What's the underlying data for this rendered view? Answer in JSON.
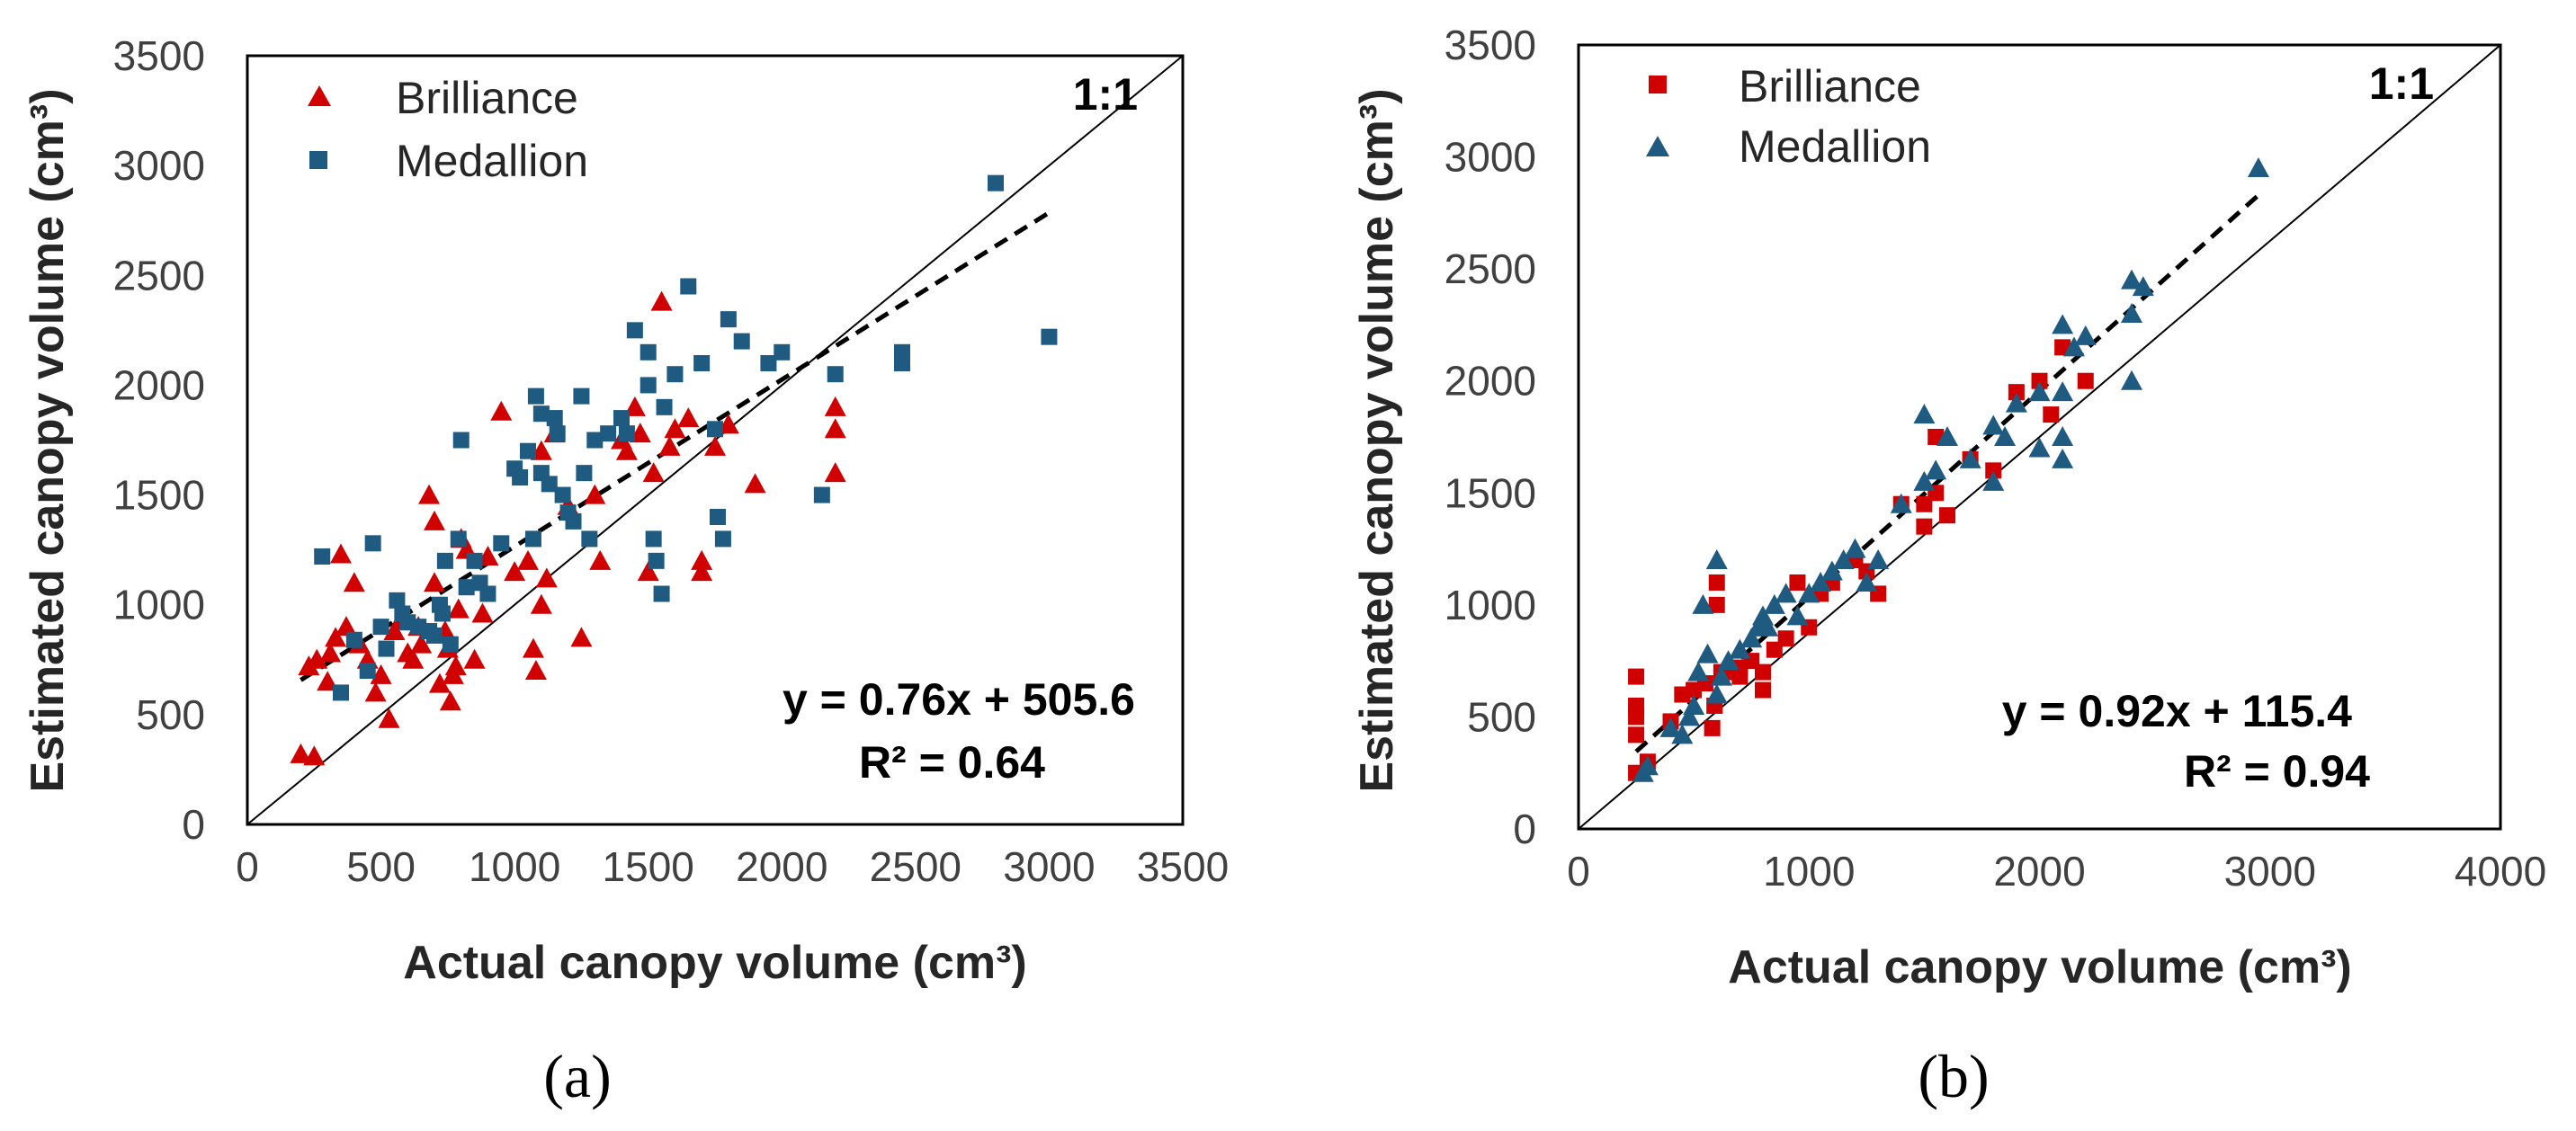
{
  "colors": {
    "brilliance": "#d00000",
    "medallion": "#1f5a80",
    "axis": "#000000"
  },
  "chart_data": [
    {
      "id": "a",
      "type": "scatter",
      "panel_label": "(a)",
      "xlabel": "Actual canopy volume (cm³)",
      "ylabel": "Estimated canopy volume (cm³)",
      "xlim": [
        0,
        3500
      ],
      "ylim": [
        0,
        3500
      ],
      "xticks": [
        0,
        500,
        1000,
        1500,
        2000,
        2500,
        3000,
        3500
      ],
      "yticks": [
        0,
        500,
        1000,
        1500,
        2000,
        2500,
        3000,
        3500
      ],
      "xticklabels": [
        "0",
        "500",
        "1000",
        "1500",
        "2000",
        "2500",
        "3000",
        "3500"
      ],
      "yticklabels": [
        "0",
        "500",
        "1000",
        "1500",
        "2000",
        "2500",
        "3000",
        "3500"
      ],
      "legend_position": "top-left",
      "one_to_one_label": "1:1",
      "equation": "y = 0.76x + 505.6",
      "r2": "R² = 0.64",
      "trendline": {
        "slope": 0.76,
        "intercept": 505.6,
        "x_range": [
          200,
          3000
        ]
      },
      "series": [
        {
          "name": "Brilliance",
          "marker": "triangle",
          "color": "#d00000",
          "points": [
            [
              200,
              320
            ],
            [
              250,
              310
            ],
            [
              230,
              720
            ],
            [
              260,
              750
            ],
            [
              300,
              650
            ],
            [
              310,
              780
            ],
            [
              330,
              850
            ],
            [
              350,
              1230
            ],
            [
              370,
              900
            ],
            [
              400,
              1100
            ],
            [
              420,
              820
            ],
            [
              450,
              750
            ],
            [
              480,
              600
            ],
            [
              500,
              680
            ],
            [
              530,
              480
            ],
            [
              550,
              880
            ],
            [
              580,
              930
            ],
            [
              600,
              780
            ],
            [
              620,
              750
            ],
            [
              640,
              900
            ],
            [
              650,
              820
            ],
            [
              680,
              1500
            ],
            [
              700,
              1380
            ],
            [
              700,
              1100
            ],
            [
              720,
              640
            ],
            [
              740,
              880
            ],
            [
              750,
              800
            ],
            [
              760,
              560
            ],
            [
              770,
              680
            ],
            [
              780,
              720
            ],
            [
              790,
              980
            ],
            [
              800,
              1300
            ],
            [
              820,
              1250
            ],
            [
              850,
              750
            ],
            [
              880,
              960
            ],
            [
              900,
              1220
            ],
            [
              950,
              1880
            ],
            [
              1000,
              1150
            ],
            [
              1050,
              1200
            ],
            [
              1070,
              800
            ],
            [
              1080,
              700
            ],
            [
              1100,
              1000
            ],
            [
              1100,
              1700
            ],
            [
              1120,
              1120
            ],
            [
              1150,
              1780
            ],
            [
              1200,
              1450
            ],
            [
              1250,
              850
            ],
            [
              1300,
              1500
            ],
            [
              1320,
              1200
            ],
            [
              1400,
              1750
            ],
            [
              1420,
              1700
            ],
            [
              1450,
              1900
            ],
            [
              1470,
              1780
            ],
            [
              1500,
              1150
            ],
            [
              1520,
              1600
            ],
            [
              1550,
              2380
            ],
            [
              1580,
              1720
            ],
            [
              1600,
              1800
            ],
            [
              1650,
              1850
            ],
            [
              1700,
              1200
            ],
            [
              1700,
              1150
            ],
            [
              1750,
              1720
            ],
            [
              1800,
              1820
            ],
            [
              1900,
              1550
            ],
            [
              2200,
              1900
            ],
            [
              2200,
              1800
            ],
            [
              2200,
              1600
            ]
          ]
        },
        {
          "name": "Medallion",
          "marker": "square",
          "color": "#1f5a80",
          "points": [
            [
              280,
              1220
            ],
            [
              350,
              600
            ],
            [
              400,
              840
            ],
            [
              450,
              700
            ],
            [
              470,
              1280
            ],
            [
              500,
              900
            ],
            [
              520,
              800
            ],
            [
              560,
              1020
            ],
            [
              580,
              960
            ],
            [
              600,
              920
            ],
            [
              640,
              900
            ],
            [
              680,
              880
            ],
            [
              700,
              860
            ],
            [
              720,
              1000
            ],
            [
              730,
              960
            ],
            [
              740,
              1200
            ],
            [
              760,
              820
            ],
            [
              790,
              1300
            ],
            [
              800,
              1750
            ],
            [
              820,
              1080
            ],
            [
              850,
              1200
            ],
            [
              870,
              1100
            ],
            [
              900,
              1050
            ],
            [
              950,
              1280
            ],
            [
              1000,
              1620
            ],
            [
              1020,
              1580
            ],
            [
              1050,
              1700
            ],
            [
              1070,
              1300
            ],
            [
              1080,
              1950
            ],
            [
              1100,
              1870
            ],
            [
              1100,
              1600
            ],
            [
              1130,
              1550
            ],
            [
              1150,
              1850
            ],
            [
              1160,
              1780
            ],
            [
              1180,
              1500
            ],
            [
              1200,
              1420
            ],
            [
              1220,
              1380
            ],
            [
              1250,
              1950
            ],
            [
              1260,
              1600
            ],
            [
              1280,
              1300
            ],
            [
              1300,
              1750
            ],
            [
              1350,
              1780
            ],
            [
              1400,
              1850
            ],
            [
              1420,
              1780
            ],
            [
              1450,
              2250
            ],
            [
              1500,
              2150
            ],
            [
              1500,
              2000
            ],
            [
              1520,
              1300
            ],
            [
              1530,
              1200
            ],
            [
              1550,
              1050
            ],
            [
              1560,
              1900
            ],
            [
              1600,
              2050
            ],
            [
              1650,
              2450
            ],
            [
              1700,
              2100
            ],
            [
              1750,
              1800
            ],
            [
              1760,
              1400
            ],
            [
              1780,
              1300
            ],
            [
              1800,
              2300
            ],
            [
              1850,
              2200
            ],
            [
              1950,
              2100
            ],
            [
              2000,
              2150
            ],
            [
              2150,
              1500
            ],
            [
              2200,
              2050
            ],
            [
              2450,
              2100
            ],
            [
              2450,
              2150
            ],
            [
              2800,
              2920
            ],
            [
              3000,
              2220
            ]
          ]
        }
      ]
    },
    {
      "id": "b",
      "type": "scatter",
      "panel_label": "(b)",
      "xlabel": "Actual canopy volume (cm³)",
      "ylabel": "Estimated canopy volume (cm³)",
      "xlim": [
        0,
        4000
      ],
      "ylim": [
        0,
        3500
      ],
      "xticks": [
        0,
        1000,
        2000,
        3000,
        4000
      ],
      "yticks": [
        0,
        500,
        1000,
        1500,
        2000,
        2500,
        3000,
        3500
      ],
      "xticklabels": [
        "0",
        "1000",
        "2000",
        "3000",
        "4000"
      ],
      "yticklabels": [
        "0",
        "500",
        "1000",
        "1500",
        "2000",
        "2500",
        "3000",
        "3500"
      ],
      "legend_position": "top-left",
      "one_to_one_label": "1:1",
      "equation": "y = 0.92x + 115.4",
      "r2": "R² = 0.94",
      "trendline": {
        "slope": 0.92,
        "intercept": 115.4,
        "x_range": [
          250,
          2950
        ]
      },
      "series": [
        {
          "name": "Brilliance",
          "marker": "square",
          "color": "#d00000",
          "points": [
            [
              250,
              250
            ],
            [
              250,
              420
            ],
            [
              250,
              500
            ],
            [
              250,
              550
            ],
            [
              250,
              680
            ],
            [
              300,
              300
            ],
            [
              400,
              480
            ],
            [
              450,
              600
            ],
            [
              500,
              620
            ],
            [
              550,
              650
            ],
            [
              580,
              450
            ],
            [
              590,
              550
            ],
            [
              600,
              1000
            ],
            [
              600,
              1100
            ],
            [
              620,
              700
            ],
            [
              650,
              700
            ],
            [
              700,
              680
            ],
            [
              700,
              720
            ],
            [
              750,
              750
            ],
            [
              800,
              620
            ],
            [
              800,
              700
            ],
            [
              850,
              800
            ],
            [
              900,
              850
            ],
            [
              950,
              1100
            ],
            [
              1000,
              900
            ],
            [
              1050,
              1050
            ],
            [
              1100,
              1100
            ],
            [
              1200,
              1200
            ],
            [
              1250,
              1150
            ],
            [
              1300,
              1050
            ],
            [
              1400,
              1450
            ],
            [
              1500,
              1350
            ],
            [
              1500,
              1450
            ],
            [
              1550,
              1500
            ],
            [
              1600,
              1400
            ],
            [
              1550,
              1750
            ],
            [
              1700,
              1650
            ],
            [
              1800,
              1600
            ],
            [
              1900,
              1950
            ],
            [
              2000,
              2000
            ],
            [
              2050,
              1850
            ],
            [
              2100,
              2150
            ],
            [
              2200,
              2000
            ]
          ]
        },
        {
          "name": "Medallion",
          "marker": "triangle",
          "color": "#1f5a80",
          "points": [
            [
              280,
              250
            ],
            [
              300,
              280
            ],
            [
              400,
              450
            ],
            [
              450,
              420
            ],
            [
              480,
              500
            ],
            [
              500,
              550
            ],
            [
              520,
              700
            ],
            [
              540,
              1000
            ],
            [
              560,
              780
            ],
            [
              600,
              600
            ],
            [
              600,
              1200
            ],
            [
              620,
              680
            ],
            [
              650,
              750
            ],
            [
              700,
              800
            ],
            [
              750,
              850
            ],
            [
              780,
              900
            ],
            [
              800,
              950
            ],
            [
              820,
              900
            ],
            [
              850,
              1000
            ],
            [
              900,
              1050
            ],
            [
              950,
              950
            ],
            [
              1000,
              1050
            ],
            [
              1050,
              1100
            ],
            [
              1100,
              1150
            ],
            [
              1150,
              1200
            ],
            [
              1200,
              1250
            ],
            [
              1250,
              1100
            ],
            [
              1300,
              1200
            ],
            [
              1400,
              1450
            ],
            [
              1500,
              1850
            ],
            [
              1500,
              1550
            ],
            [
              1550,
              1600
            ],
            [
              1600,
              1750
            ],
            [
              1700,
              1650
            ],
            [
              1800,
              1800
            ],
            [
              1800,
              1550
            ],
            [
              1850,
              1750
            ],
            [
              1900,
              1900
            ],
            [
              2000,
              1950
            ],
            [
              2000,
              1700
            ],
            [
              2100,
              2250
            ],
            [
              2100,
              1950
            ],
            [
              2100,
              1750
            ],
            [
              2100,
              1650
            ],
            [
              2150,
              2150
            ],
            [
              2200,
              2200
            ],
            [
              2400,
              2450
            ],
            [
              2400,
              2300
            ],
            [
              2400,
              2000
            ],
            [
              2450,
              2420
            ],
            [
              2950,
              2950
            ]
          ]
        }
      ]
    }
  ]
}
